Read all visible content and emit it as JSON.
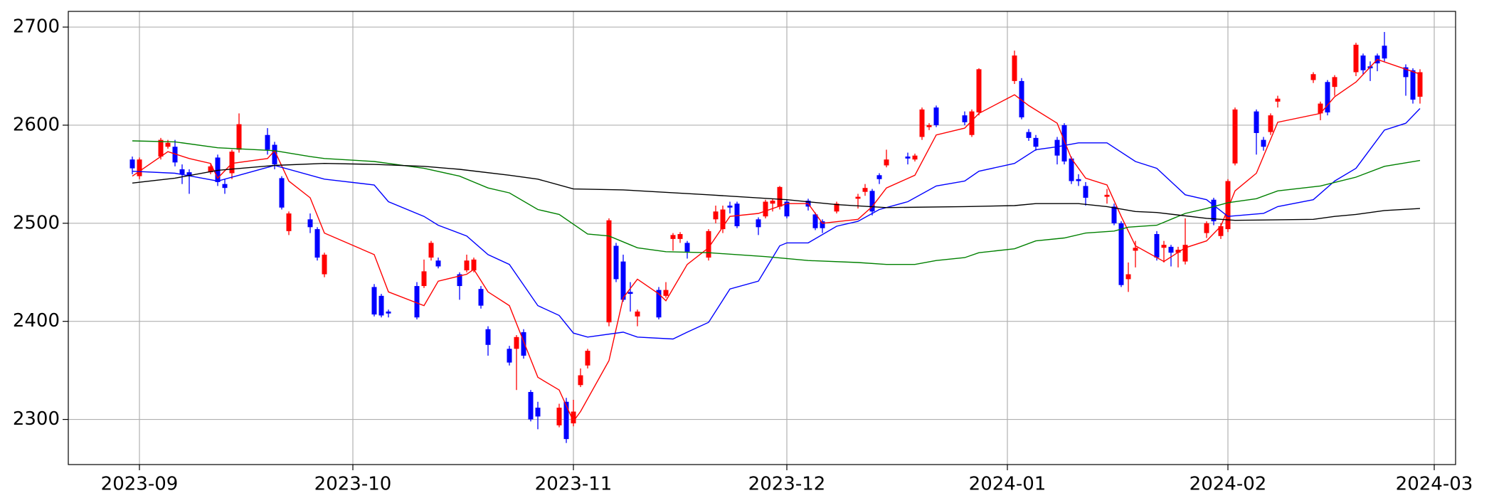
{
  "chart_data": {
    "type": "candlestick",
    "x": [
      "2023-08-31",
      "2023-09-01",
      "2023-09-04",
      "2023-09-05",
      "2023-09-06",
      "2023-09-07",
      "2023-09-08",
      "2023-09-11",
      "2023-09-12",
      "2023-09-13",
      "2023-09-14",
      "2023-09-15",
      "2023-09-19",
      "2023-09-20",
      "2023-09-21",
      "2023-09-22",
      "2023-09-25",
      "2023-09-26",
      "2023-09-27",
      "2023-10-04",
      "2023-10-05",
      "2023-10-06",
      "2023-10-10",
      "2023-10-11",
      "2023-10-12",
      "2023-10-13",
      "2023-10-16",
      "2023-10-17",
      "2023-10-18",
      "2023-10-19",
      "2023-10-20",
      "2023-10-23",
      "2023-10-24",
      "2023-10-25",
      "2023-10-26",
      "2023-10-27",
      "2023-10-30",
      "2023-10-31",
      "2023-11-01",
      "2023-11-02",
      "2023-11-03",
      "2023-11-06",
      "2023-11-07",
      "2023-11-08",
      "2023-11-09",
      "2023-11-10",
      "2023-11-13",
      "2023-11-14",
      "2023-11-15",
      "2023-11-16",
      "2023-11-17",
      "2023-11-20",
      "2023-11-21",
      "2023-11-22",
      "2023-11-23",
      "2023-11-24",
      "2023-11-27",
      "2023-11-28",
      "2023-11-29",
      "2023-11-30",
      "2023-12-01",
      "2023-12-04",
      "2023-12-05",
      "2023-12-06",
      "2023-12-08",
      "2023-12-11",
      "2023-12-12",
      "2023-12-13",
      "2023-12-14",
      "2023-12-15",
      "2023-12-18",
      "2023-12-19",
      "2023-12-20",
      "2023-12-21",
      "2023-12-22",
      "2023-12-26",
      "2023-12-27",
      "2023-12-28",
      "2024-01-02",
      "2024-01-03",
      "2024-01-04",
      "2024-01-05",
      "2024-01-08",
      "2024-01-09",
      "2024-01-10",
      "2024-01-11",
      "2024-01-12",
      "2024-01-15",
      "2024-01-16",
      "2024-01-17",
      "2024-01-18",
      "2024-01-19",
      "2024-01-22",
      "2024-01-23",
      "2024-01-24",
      "2024-01-25",
      "2024-01-26",
      "2024-01-29",
      "2024-01-30",
      "2024-01-31",
      "2024-02-01",
      "2024-02-02",
      "2024-02-05",
      "2024-02-06",
      "2024-02-07",
      "2024-02-08",
      "2024-02-13",
      "2024-02-14",
      "2024-02-15",
      "2024-02-16",
      "2024-02-19",
      "2024-02-20",
      "2024-02-21",
      "2024-02-22",
      "2024-02-23",
      "2024-02-26",
      "2024-02-27",
      "2024-02-28"
    ],
    "open": [
      2565,
      2548,
      2568,
      2578,
      2578,
      2555,
      2552,
      2552,
      2567,
      2540,
      2551,
      2575,
      2590,
      2580,
      2546,
      2492,
      2504,
      2494,
      2448,
      2435,
      2426,
      2410,
      2436,
      2436,
      2465,
      2462,
      2448,
      2452,
      2452,
      2433,
      2392,
      2372,
      2372,
      2389,
      2328,
      2312,
      2294,
      2318,
      2296,
      2335,
      2355,
      2399,
      2477,
      2461,
      2430,
      2405,
      2432,
      2426,
      2484,
      2484,
      2480,
      2465,
      2504,
      2494,
      2518,
      2520,
      2504,
      2507,
      2520,
      2517,
      2522,
      2523,
      2509,
      2502,
      2512,
      2525,
      2532,
      2533,
      2549,
      2559,
      2568,
      2565,
      2588,
      2598,
      2618,
      2610,
      2590,
      2613,
      2645,
      2645,
      2593,
      2587,
      2585,
      2600,
      2566,
      2545,
      2538,
      2527,
      2517,
      2500,
      2443,
      2472,
      2489,
      2475,
      2476,
      2470,
      2461,
      2490,
      2524,
      2487,
      2494,
      2561,
      2614,
      2585,
      2593,
      2624,
      2646,
      2612,
      2644,
      2639,
      2654,
      2671,
      2660,
      2671,
      2681,
      2659,
      2656,
      2629
    ],
    "high": [
      2568,
      2567,
      2587,
      2585,
      2585,
      2560,
      2555,
      2560,
      2570,
      2545,
      2575,
      2612,
      2597,
      2583,
      2548,
      2512,
      2510,
      2496,
      2470,
      2438,
      2428,
      2412,
      2440,
      2463,
      2482,
      2465,
      2450,
      2468,
      2465,
      2436,
      2395,
      2375,
      2386,
      2392,
      2330,
      2318,
      2316,
      2322,
      2320,
      2352,
      2372,
      2505,
      2480,
      2468,
      2440,
      2412,
      2435,
      2440,
      2490,
      2491,
      2482,
      2494,
      2518,
      2518,
      2522,
      2522,
      2506,
      2524,
      2525,
      2538,
      2524,
      2525,
      2511,
      2504,
      2522,
      2530,
      2540,
      2535,
      2551,
      2575,
      2572,
      2571,
      2618,
      2602,
      2620,
      2614,
      2616,
      2658,
      2676,
      2648,
      2596,
      2590,
      2588,
      2602,
      2568,
      2550,
      2542,
      2535,
      2520,
      2502,
      2460,
      2482,
      2492,
      2482,
      2478,
      2476,
      2505,
      2502,
      2526,
      2500,
      2545,
      2618,
      2616,
      2588,
      2612,
      2630,
      2654,
      2624,
      2646,
      2651,
      2684,
      2673,
      2665,
      2673,
      2695,
      2662,
      2658,
      2657
    ],
    "low": [
      2550,
      2545,
      2565,
      2576,
      2558,
      2540,
      2530,
      2550,
      2538,
      2530,
      2545,
      2572,
      2570,
      2555,
      2514,
      2488,
      2490,
      2462,
      2445,
      2405,
      2404,
      2404,
      2402,
      2434,
      2462,
      2454,
      2422,
      2450,
      2450,
      2413,
      2365,
      2355,
      2330,
      2362,
      2298,
      2290,
      2292,
      2276,
      2293,
      2333,
      2352,
      2395,
      2440,
      2420,
      2410,
      2395,
      2402,
      2424,
      2472,
      2480,
      2464,
      2462,
      2500,
      2490,
      2510,
      2495,
      2488,
      2505,
      2512,
      2514,
      2505,
      2513,
      2493,
      2490,
      2510,
      2515,
      2528,
      2508,
      2540,
      2557,
      2560,
      2563,
      2585,
      2595,
      2598,
      2600,
      2588,
      2610,
      2642,
      2606,
      2584,
      2574,
      2560,
      2560,
      2540,
      2538,
      2518,
      2520,
      2498,
      2435,
      2430,
      2455,
      2462,
      2460,
      2456,
      2455,
      2458,
      2485,
      2498,
      2484,
      2491,
      2559,
      2570,
      2574,
      2590,
      2618,
      2643,
      2605,
      2610,
      2630,
      2650,
      2652,
      2645,
      2655,
      2665,
      2630,
      2622,
      2622
    ],
    "close": [
      2556,
      2565,
      2585,
      2582,
      2562,
      2550,
      2548,
      2558,
      2542,
      2536,
      2573,
      2601,
      2575,
      2560,
      2516,
      2510,
      2496,
      2465,
      2468,
      2407,
      2406,
      2408,
      2404,
      2451,
      2480,
      2456,
      2436,
      2462,
      2463,
      2416,
      2376,
      2358,
      2384,
      2365,
      2300,
      2303,
      2312,
      2280,
      2308,
      2345,
      2370,
      2503,
      2443,
      2422,
      2428,
      2410,
      2404,
      2432,
      2488,
      2489,
      2471,
      2492,
      2512,
      2514,
      2516,
      2497,
      2496,
      2522,
      2523,
      2537,
      2507,
      2517,
      2495,
      2495,
      2520,
      2527,
      2536,
      2512,
      2545,
      2565,
      2566,
      2569,
      2616,
      2600,
      2600,
      2603,
      2614,
      2657,
      2671,
      2608,
      2587,
      2578,
      2569,
      2563,
      2543,
      2543,
      2526,
      2529,
      2500,
      2437,
      2448,
      2475,
      2465,
      2478,
      2470,
      2473,
      2478,
      2500,
      2502,
      2497,
      2543,
      2616,
      2592,
      2578,
      2610,
      2627,
      2652,
      2622,
      2613,
      2649,
      2682,
      2656,
      2658,
      2663,
      2668,
      2649,
      2626,
      2654
    ],
    "up_color": "#ff0000",
    "down_color": "#0000ff",
    "series": [
      {
        "color": "#ff0000",
        "x": [
          "2023-08-31",
          "2023-09-01",
          "2023-09-05",
          "2023-09-08",
          "2023-09-11",
          "2023-09-12",
          "2023-09-14",
          "2023-09-19",
          "2023-09-20",
          "2023-09-22",
          "2023-09-25",
          "2023-09-27",
          "2023-10-04",
          "2023-10-06",
          "2023-10-11",
          "2023-10-13",
          "2023-10-17",
          "2023-10-18",
          "2023-10-20",
          "2023-10-23",
          "2023-10-27",
          "2023-10-30",
          "2023-11-01",
          "2023-11-02",
          "2023-11-06",
          "2023-11-08",
          "2023-11-10",
          "2023-11-13",
          "2023-11-14",
          "2023-11-17",
          "2023-11-20",
          "2023-11-23",
          "2023-11-27",
          "2023-12-01",
          "2023-12-04",
          "2023-12-06",
          "2023-12-11",
          "2023-12-13",
          "2023-12-15",
          "2023-12-19",
          "2023-12-22",
          "2023-12-26",
          "2023-12-28",
          "2024-01-02",
          "2024-01-04",
          "2024-01-08",
          "2024-01-10",
          "2024-01-12",
          "2024-01-15",
          "2024-01-17",
          "2024-01-19",
          "2024-01-23",
          "2024-01-26",
          "2024-01-29",
          "2024-01-31",
          "2024-02-02",
          "2024-02-05",
          "2024-02-08",
          "2024-02-14",
          "2024-02-16",
          "2024-02-19",
          "2024-02-22",
          "2024-02-26",
          "2024-02-28"
        ],
        "values": [
          2548,
          2553,
          2573,
          2566,
          2561,
          2546,
          2561,
          2566,
          2574,
          2543,
          2526,
          2490,
          2468,
          2430,
          2416,
          2441,
          2448,
          2453,
          2430,
          2416,
          2343,
          2330,
          2298,
          2308,
          2360,
          2424,
          2443,
          2428,
          2421,
          2458,
          2475,
          2507,
          2510,
          2520,
          2520,
          2500,
          2504,
          2517,
          2536,
          2549,
          2590,
          2597,
          2612,
          2631,
          2620,
          2602,
          2566,
          2546,
          2539,
          2507,
          2477,
          2461,
          2475,
          2482,
          2497,
          2533,
          2551,
          2603,
          2612,
          2629,
          2644,
          2667,
          2657,
          2652
        ]
      },
      {
        "color": "#0000ff",
        "x": [
          "2023-08-31",
          "2023-09-06",
          "2023-09-12",
          "2023-09-15",
          "2023-09-20",
          "2023-09-27",
          "2023-10-04",
          "2023-10-06",
          "2023-10-11",
          "2023-10-13",
          "2023-10-17",
          "2023-10-20",
          "2023-10-23",
          "2023-10-27",
          "2023-10-30",
          "2023-11-01",
          "2023-11-03",
          "2023-11-08",
          "2023-11-10",
          "2023-11-15",
          "2023-11-17",
          "2023-11-20",
          "2023-11-23",
          "2023-11-27",
          "2023-11-30",
          "2023-12-01",
          "2023-12-04",
          "2023-12-08",
          "2023-12-11",
          "2023-12-14",
          "2023-12-18",
          "2023-12-22",
          "2023-12-26",
          "2023-12-28",
          "2024-01-02",
          "2024-01-05",
          "2024-01-08",
          "2024-01-11",
          "2024-01-15",
          "2024-01-19",
          "2024-01-22",
          "2024-01-26",
          "2024-01-29",
          "2024-02-01",
          "2024-02-06",
          "2024-02-08",
          "2024-02-13",
          "2024-02-16",
          "2024-02-19",
          "2024-02-23",
          "2024-02-26",
          "2024-02-28"
        ],
        "values": [
          2553,
          2551,
          2543,
          2549,
          2559,
          2545,
          2539,
          2522,
          2507,
          2498,
          2487,
          2468,
          2458,
          2416,
          2406,
          2388,
          2384,
          2389,
          2384,
          2382,
          2389,
          2399,
          2433,
          2441,
          2477,
          2480,
          2480,
          2497,
          2502,
          2514,
          2522,
          2538,
          2543,
          2553,
          2561,
          2575,
          2578,
          2582,
          2582,
          2563,
          2556,
          2529,
          2524,
          2507,
          2510,
          2517,
          2524,
          2543,
          2556,
          2595,
          2602,
          2617
        ]
      },
      {
        "color": "#008000",
        "x": [
          "2023-08-31",
          "2023-09-06",
          "2023-09-12",
          "2023-09-20",
          "2023-09-25",
          "2023-09-27",
          "2023-10-04",
          "2023-10-11",
          "2023-10-16",
          "2023-10-20",
          "2023-10-23",
          "2023-10-27",
          "2023-10-30",
          "2023-11-03",
          "2023-11-06",
          "2023-11-10",
          "2023-11-14",
          "2023-11-20",
          "2023-11-28",
          "2023-12-04",
          "2023-12-11",
          "2023-12-15",
          "2023-12-19",
          "2023-12-22",
          "2023-12-26",
          "2023-12-28",
          "2024-01-02",
          "2024-01-05",
          "2024-01-09",
          "2024-01-12",
          "2024-01-16",
          "2024-01-18",
          "2024-01-22",
          "2024-01-26",
          "2024-01-29",
          "2024-02-01",
          "2024-02-05",
          "2024-02-08",
          "2024-02-14",
          "2024-02-19",
          "2024-02-23",
          "2024-02-28"
        ],
        "values": [
          2584,
          2583,
          2577,
          2574,
          2568,
          2566,
          2563,
          2556,
          2548,
          2536,
          2531,
          2514,
          2509,
          2489,
          2487,
          2475,
          2471,
          2470,
          2466,
          2462,
          2460,
          2458,
          2458,
          2462,
          2465,
          2470,
          2474,
          2482,
          2485,
          2490,
          2492,
          2496,
          2498,
          2510,
          2515,
          2521,
          2525,
          2533,
          2538,
          2547,
          2558,
          2564
        ]
      },
      {
        "color": "#000000",
        "x": [
          "2023-08-31",
          "2023-09-06",
          "2023-09-12",
          "2023-09-20",
          "2023-09-27",
          "2023-10-04",
          "2023-10-11",
          "2023-10-16",
          "2023-10-23",
          "2023-10-27",
          "2023-11-01",
          "2023-11-08",
          "2023-11-20",
          "2023-12-01",
          "2023-12-08",
          "2023-12-15",
          "2023-12-26",
          "2024-01-02",
          "2024-01-05",
          "2024-01-11",
          "2024-01-15",
          "2024-01-19",
          "2024-01-22",
          "2024-01-29",
          "2024-02-02",
          "2024-02-13",
          "2024-02-16",
          "2024-02-19",
          "2024-02-23",
          "2024-02-28"
        ],
        "values": [
          2541,
          2546,
          2554,
          2559,
          2561,
          2560,
          2558,
          2555,
          2549,
          2545,
          2535,
          2534,
          2529,
          2524,
          2519,
          2516,
          2517,
          2518,
          2520,
          2520,
          2517,
          2512,
          2511,
          2505,
          2503,
          2504,
          2507,
          2509,
          2513,
          2515
        ]
      }
    ],
    "xlim": [
      "2023-08-22",
      "2024-03-04"
    ],
    "xticks": [
      {
        "value": "2023-09-01",
        "label": "2023-09"
      },
      {
        "value": "2023-10-01",
        "label": "2023-10"
      },
      {
        "value": "2023-11-01",
        "label": "2023-11"
      },
      {
        "value": "2023-12-01",
        "label": "2023-12"
      },
      {
        "value": "2024-01-01",
        "label": "2024-01"
      },
      {
        "value": "2024-02-01",
        "label": "2024-02"
      },
      {
        "value": "2024-03-01",
        "label": "2024-03"
      }
    ],
    "ylim": [
      2254,
      2716
    ],
    "yticks": [
      2300,
      2400,
      2500,
      2600,
      2700
    ],
    "grid": true
  }
}
